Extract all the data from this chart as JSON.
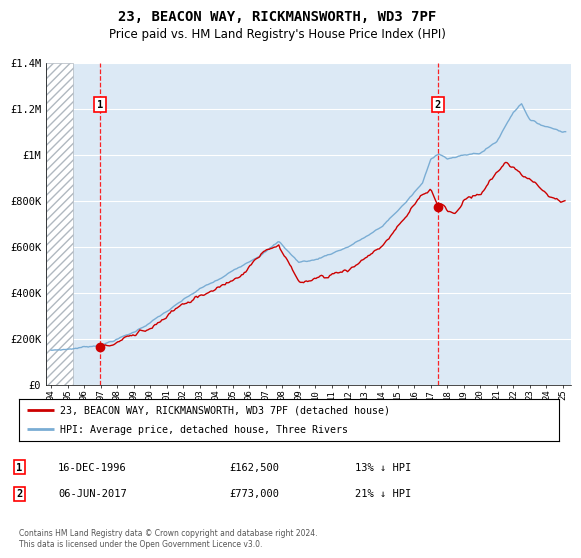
{
  "title": "23, BEACON WAY, RICKMANSWORTH, WD3 7PF",
  "subtitle": "Price paid vs. HM Land Registry's House Price Index (HPI)",
  "ylim": [
    0,
    1400000
  ],
  "yticks": [
    0,
    200000,
    400000,
    600000,
    800000,
    1000000,
    1200000,
    1400000
  ],
  "ytick_labels": [
    "£0",
    "£200K",
    "£400K",
    "£600K",
    "£800K",
    "£1M",
    "£1.2M",
    "£1.4M"
  ],
  "xlim_start": 1993.7,
  "xlim_end": 2025.5,
  "plot_bg_color": "#dce9f5",
  "hatch_color": "#b0b8c0",
  "red_line_color": "#cc0000",
  "blue_line_color": "#7aadd4",
  "marker1_x": 1996.96,
  "marker1_y": 162500,
  "marker2_x": 2017.43,
  "marker2_y": 773000,
  "legend_line1": "23, BEACON WAY, RICKMANSWORTH, WD3 7PF (detached house)",
  "legend_line2": "HPI: Average price, detached house, Three Rivers",
  "marker1_date": "16-DEC-1996",
  "marker1_price": "£162,500",
  "marker1_hpi": "13% ↓ HPI",
  "marker2_date": "06-JUN-2017",
  "marker2_price": "£773,000",
  "marker2_hpi": "21% ↓ HPI",
  "footer": "Contains HM Land Registry data © Crown copyright and database right 2024.\nThis data is licensed under the Open Government Licence v3.0.",
  "hatch_end_year": 1995.3
}
